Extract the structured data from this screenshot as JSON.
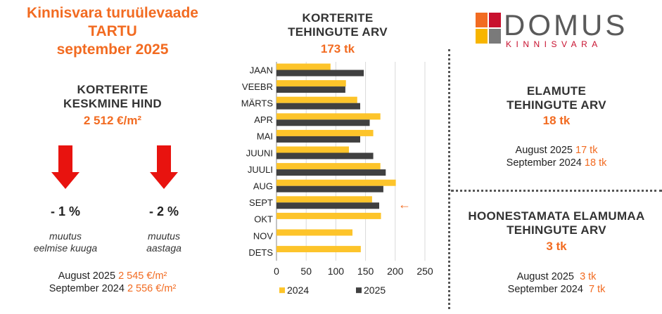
{
  "left": {
    "title_lines": [
      "Kinnisvara turuülevaade",
      "TARTU",
      "september 2025"
    ],
    "heading_lines": [
      "KORTERITE",
      "KESKMINE HIND"
    ],
    "price": "2 512 €/m²",
    "changes": [
      {
        "value": "- 1 %",
        "note_lines": [
          "muutus",
          "eelmise kuuga"
        ]
      },
      {
        "value": "- 2 %",
        "note_lines": [
          "muutus",
          "aastaga"
        ]
      }
    ],
    "comparisons": [
      {
        "label": "August 2025",
        "value": "2 545 €/m²"
      },
      {
        "label": "September 2024",
        "value": "2 556 €/m²"
      }
    ]
  },
  "middle": {
    "heading_lines": [
      "KORTERITE",
      "TEHINGUTE ARV"
    ],
    "total": "173 tk",
    "arrow": "←"
  },
  "brand": {
    "name": "DOMUS",
    "sub": "KINNISVARA",
    "colors": [
      "#f26b21",
      "#c8102e",
      "#f7b500",
      "#7a7a7a"
    ]
  },
  "houses": {
    "heading_lines": [
      "ELAMUTE",
      "TEHINGUTE ARV"
    ],
    "total": "18 tk",
    "comparisons": [
      {
        "label": "August 2025",
        "value": "17 tk"
      },
      {
        "label": "September 2024",
        "value": "18 tk"
      }
    ]
  },
  "land": {
    "heading_lines": [
      "HOONESTAMATA ELAMUMAA",
      "TEHINGUTE ARV"
    ],
    "total": "3 tk",
    "comparisons": [
      {
        "label": "August 2025",
        "value": "3 tk"
      },
      {
        "label": "September 2024",
        "value": "7 tk"
      }
    ]
  },
  "chart_data": {
    "type": "bar",
    "orientation": "horizontal",
    "title": "KORTERITE TEHINGUTE ARV",
    "categories": [
      "JAAN",
      "VEEBR",
      "MÄRTS",
      "APR",
      "MAI",
      "JUUNI",
      "JUULI",
      "AUG",
      "SEPT",
      "OKT",
      "NOV",
      "DETS"
    ],
    "series": [
      {
        "name": "2024",
        "color": "#fdc42a",
        "values": [
          91,
          117,
          136,
          175,
          163,
          122,
          175,
          201,
          161,
          176,
          128,
          142
        ]
      },
      {
        "name": "2025",
        "color": "#404040",
        "values": [
          147,
          116,
          141,
          157,
          141,
          163,
          184,
          180,
          173,
          null,
          null,
          null
        ]
      }
    ],
    "xlim": [
      0,
      250
    ],
    "xticks": [
      0,
      50,
      100,
      150,
      200,
      250
    ],
    "xlabel": "",
    "ylabel": "",
    "grid": true,
    "legend": "bottom"
  }
}
